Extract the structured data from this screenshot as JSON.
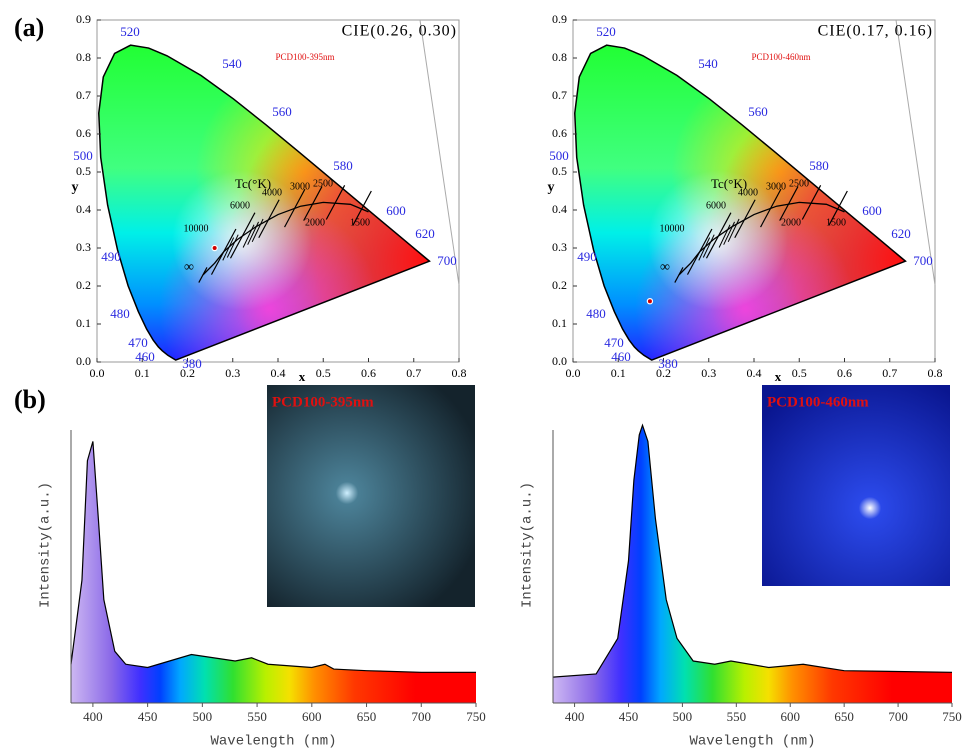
{
  "figure": {
    "panel_labels": [
      "(a)",
      "(b)"
    ]
  },
  "chart_data": [
    {
      "type": "scatter",
      "annotation": "CIE(0.26, 0.30)",
      "label": "PCD100-395nm",
      "xlabel": "x",
      "ylabel": "y",
      "x": [
        0.26
      ],
      "values": [
        0.3
      ],
      "color": "#d00000",
      "xlim": [
        0,
        0.8
      ],
      "ylim": [
        0,
        0.9
      ],
      "xticks": [
        {
          "value": 0,
          "label": "0.0"
        },
        0.1,
        0.2,
        0.3,
        0.4,
        0.5,
        0.6,
        0.7,
        0.8
      ],
      "yticks": [
        {
          "value": 0,
          "label": "0.0"
        },
        0.1,
        0.2,
        0.3,
        0.4,
        0.5,
        0.6,
        0.7,
        0.8,
        0.9
      ],
      "locus_labels": [
        "520",
        "540",
        "560",
        "580",
        "600",
        "620",
        "700",
        "500",
        "490",
        "480",
        "470",
        "460",
        "380"
      ],
      "planckian_title": "Tc(°K)",
      "cct_labels": [
        "10000",
        "6000",
        "4000",
        "3000",
        "2500",
        "2000",
        "1500",
        "∞"
      ]
    },
    {
      "type": "scatter",
      "annotation": "CIE(0.17, 0.16)",
      "label": "PCD100-460nm",
      "xlabel": "x",
      "ylabel": "y",
      "x": [
        0.17
      ],
      "values": [
        0.16
      ],
      "color": "#d00000",
      "xlim": [
        0,
        0.8
      ],
      "ylim": [
        0,
        0.9
      ],
      "xticks": [
        {
          "value": 0,
          "label": "0.0"
        },
        0.1,
        0.2,
        0.3,
        0.4,
        0.5,
        0.6,
        0.7,
        0.8
      ],
      "yticks": [
        {
          "value": 0,
          "label": "0.0"
        },
        0.1,
        0.2,
        0.3,
        0.4,
        0.5,
        0.6,
        0.7,
        0.8,
        0.9
      ],
      "locus_labels": [
        "520",
        "540",
        "560",
        "580",
        "600",
        "620",
        "700",
        "500",
        "490",
        "480",
        "470",
        "460",
        "380"
      ],
      "planckian_title": "Tc(°K)",
      "cct_labels": [
        "10000",
        "6000",
        "4000",
        "3000",
        "2500",
        "2000",
        "1500",
        "∞"
      ]
    },
    {
      "type": "line",
      "xlabel": "Wavelength (nm)",
      "ylabel": "Intensity(a.u.)",
      "inset_label": "PCD100-395nm",
      "x": [
        380,
        390,
        395,
        400,
        405,
        410,
        420,
        430,
        450,
        470,
        490,
        510,
        530,
        545,
        560,
        600,
        612,
        620,
        650,
        700,
        750
      ],
      "values": [
        0.12,
        0.38,
        0.75,
        0.81,
        0.57,
        0.32,
        0.16,
        0.12,
        0.11,
        0.13,
        0.15,
        0.14,
        0.13,
        0.14,
        0.12,
        0.11,
        0.12,
        0.105,
        0.1,
        0.095,
        0.095
      ],
      "color": "#000000",
      "xlim": [
        380,
        750
      ],
      "ylim": [
        0,
        1
      ],
      "xticks": [
        400,
        450,
        500,
        550,
        600,
        650,
        700,
        750
      ]
    },
    {
      "type": "line",
      "xlabel": "Wavelength (nm)",
      "ylabel": "Intensity(a.u.)",
      "inset_label": "PCD100-460nm",
      "x": [
        380,
        420,
        440,
        450,
        455,
        460,
        463,
        468,
        475,
        485,
        495,
        510,
        530,
        545,
        580,
        612,
        650,
        750
      ],
      "values": [
        0.08,
        0.09,
        0.2,
        0.44,
        0.69,
        0.83,
        0.86,
        0.81,
        0.57,
        0.32,
        0.2,
        0.13,
        0.12,
        0.13,
        0.11,
        0.12,
        0.1,
        0.095
      ],
      "color": "#000000",
      "xlim": [
        380,
        750
      ],
      "ylim": [
        0,
        1
      ],
      "xticks": [
        400,
        450,
        500,
        550,
        600,
        650,
        700,
        750
      ]
    }
  ]
}
